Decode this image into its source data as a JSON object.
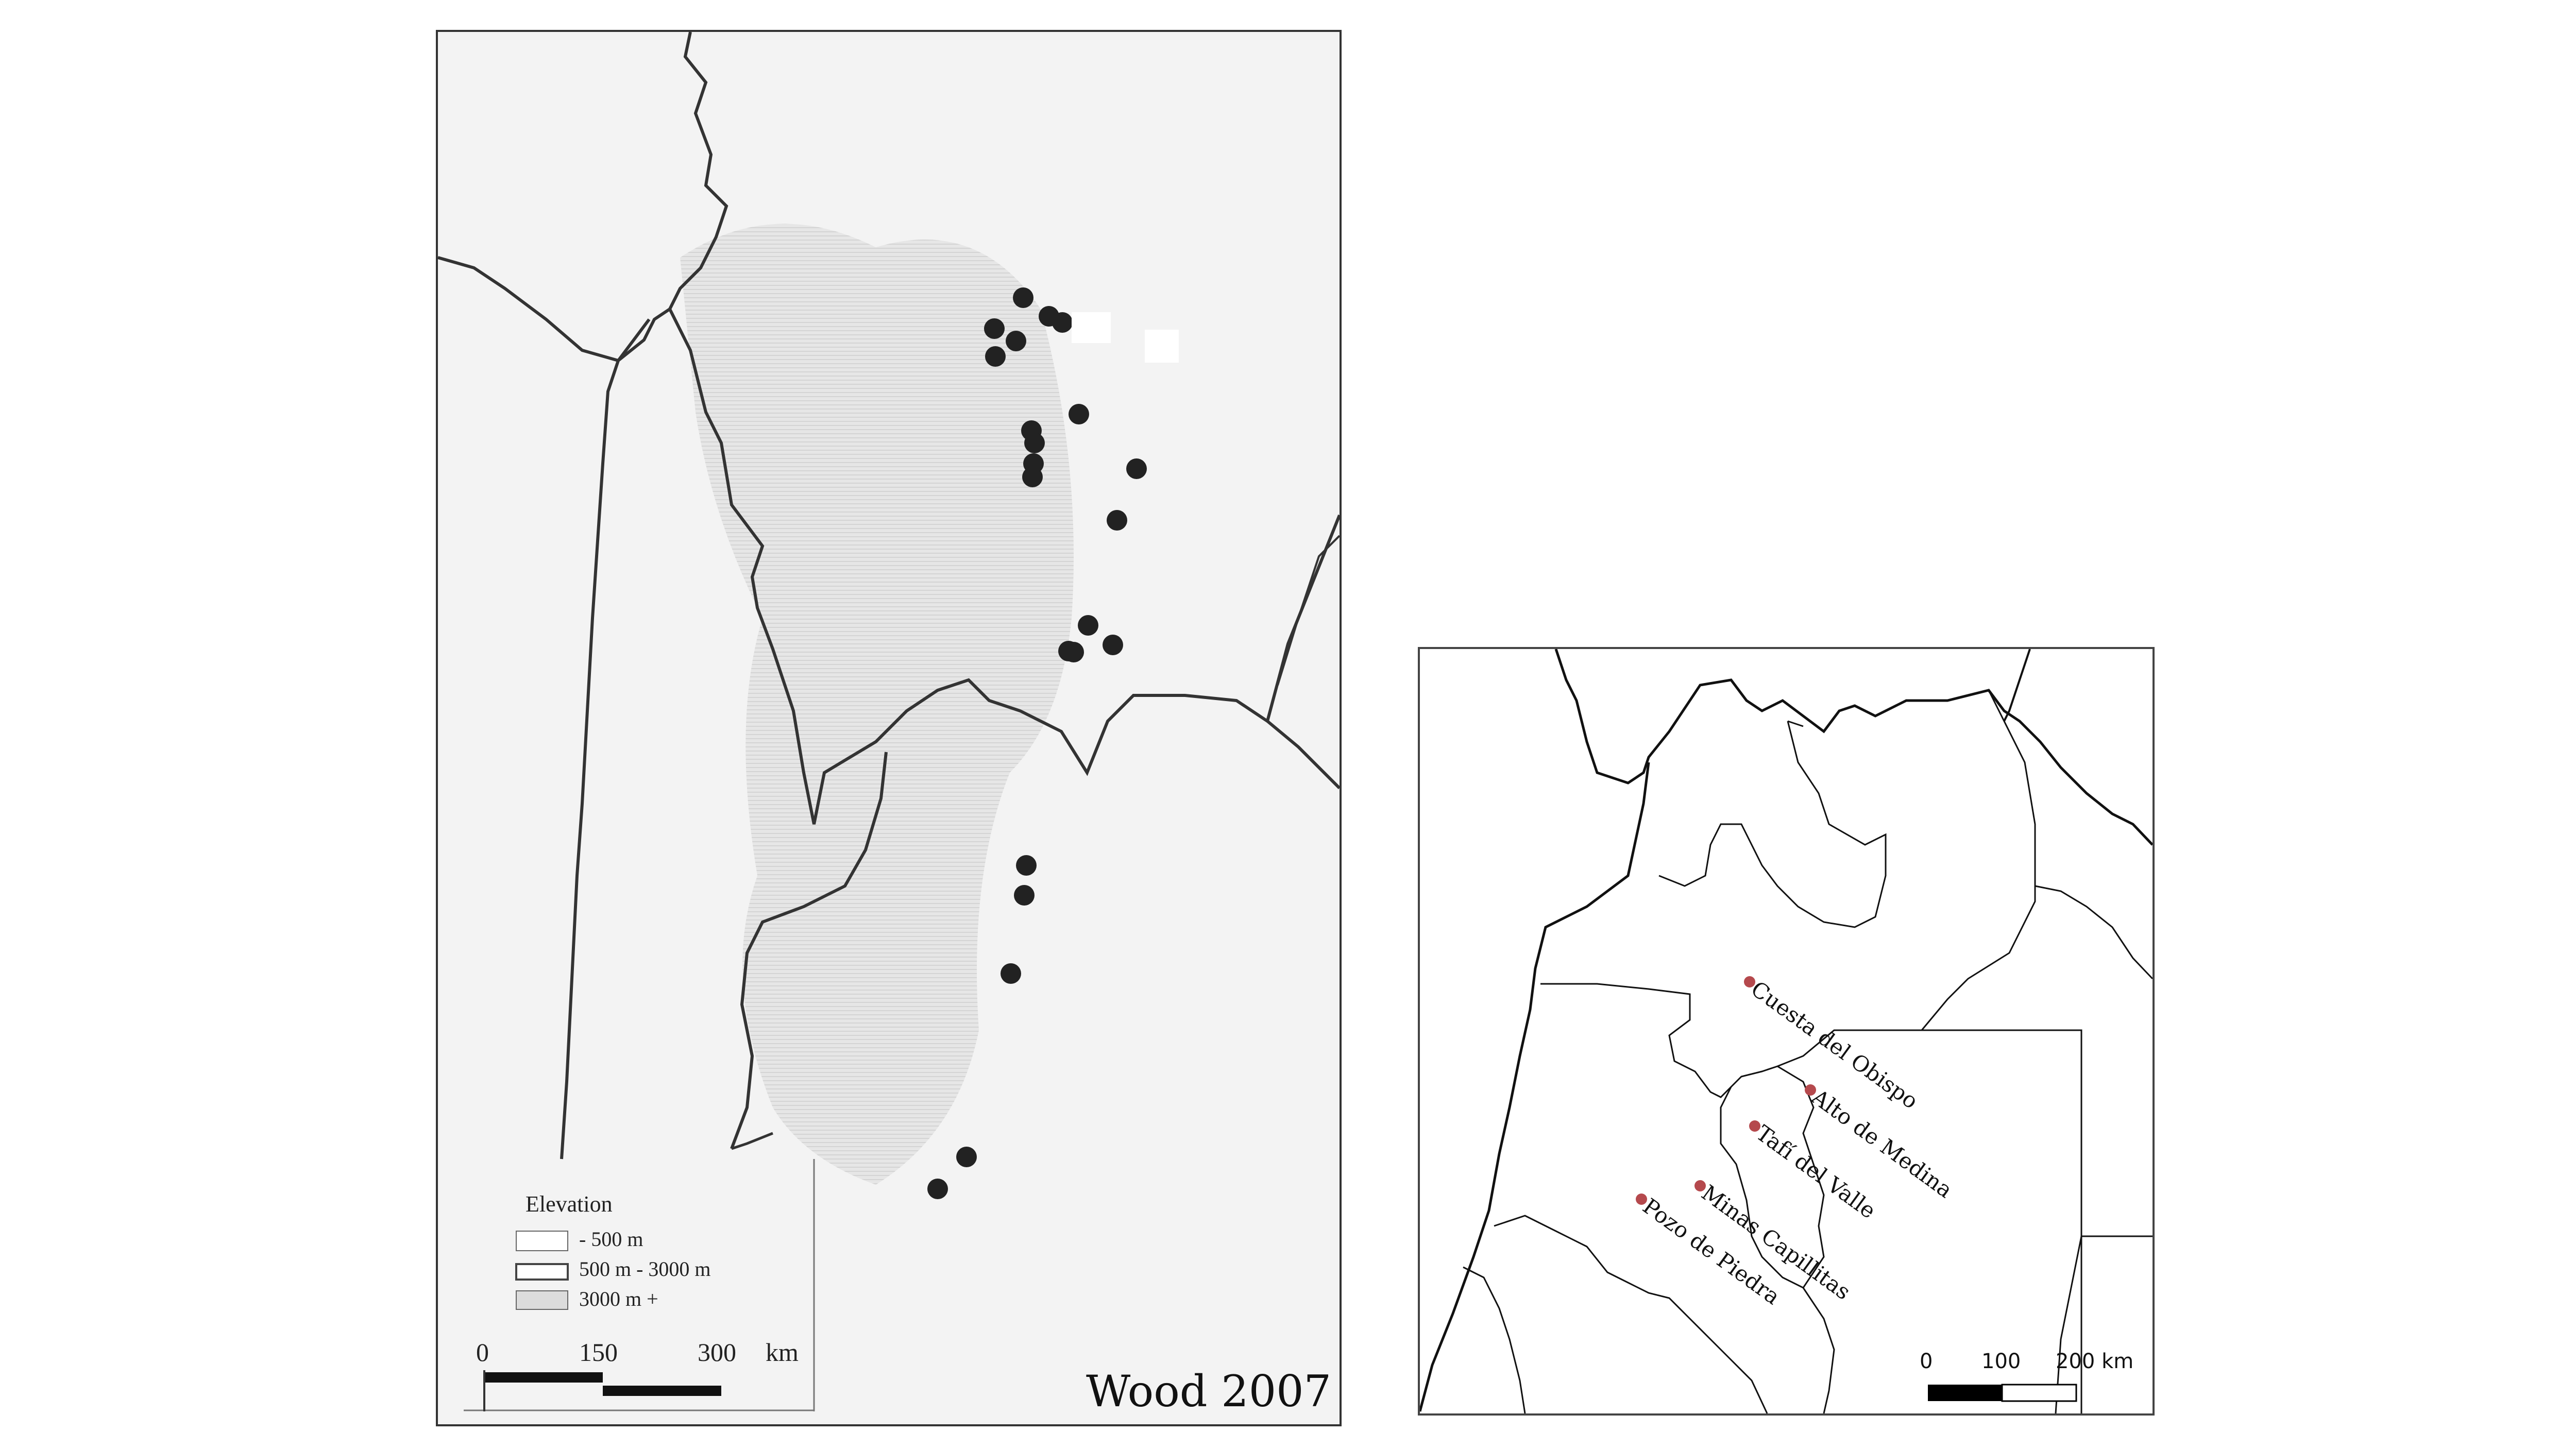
{
  "left_map": {
    "credit": "Wood 2007",
    "legend": {
      "title": "Elevation",
      "items": [
        {
          "label": "- 500 m"
        },
        {
          "label": "500 m - 3000 m"
        },
        {
          "label": "3000 m +"
        }
      ]
    },
    "scale": {
      "ticks": [
        "0",
        "150",
        "300"
      ],
      "unit": "km"
    }
  },
  "right_map": {
    "sites": [
      {
        "name": "Cuesta del Obispo"
      },
      {
        "name": "Alto de Medina"
      },
      {
        "name": "Tafí del Valle"
      },
      {
        "name": "Minas Capillitas"
      },
      {
        "name": "Pozo de Piedra"
      }
    ],
    "scale": {
      "ticks": [
        "0",
        "100",
        "200 km"
      ]
    },
    "site_color": "#b5494d"
  }
}
